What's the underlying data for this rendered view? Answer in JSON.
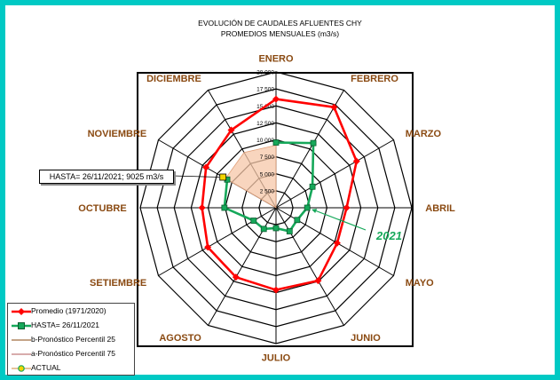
{
  "title_line1": "EVOLUCIÓN DE CAUDALES AFLUENTES CHY",
  "title_line2": "PROMEDIOS MENSUALES (m3/s)",
  "callout": "HASTA= 26/11/2021; 9025 m3/s",
  "year_label": "2021",
  "colors": {
    "promedio": "#ff0000",
    "hasta": "#16a85a",
    "actual": "#f2d400",
    "band": "#f6c7a8"
  },
  "chart_data": {
    "type": "radar",
    "categories": [
      "ENERO",
      "FEBRERO",
      "MARZO",
      "ABRIL",
      "MAYO",
      "JUNIO",
      "JULIO",
      "AGOSTO",
      "SETIEMBRE",
      "OCTUBRE",
      "NOVIEMBRE",
      "DICIEMBRE"
    ],
    "rlim": [
      0,
      20000
    ],
    "ticks": [
      "2 500",
      "5 000",
      "7 500",
      "10 000",
      "12 500",
      "15 000",
      "17 500",
      "20 000"
    ],
    "tick_values": [
      2500,
      5000,
      7500,
      10000,
      12500,
      15000,
      17500,
      20000
    ],
    "series": [
      {
        "name": "Promedio (1971/2020)",
        "marker": "diamond",
        "values": [
          16000,
          17100,
          13700,
          10400,
          10400,
          12400,
          12100,
          11800,
          11600,
          10900,
          11900,
          13200
        ]
      },
      {
        "name": "HASTA= 26/11/2021",
        "marker": "square",
        "values": [
          9600,
          11000,
          6200,
          4600,
          3600,
          4000,
          3000,
          3600,
          3800,
          7600,
          8300,
          null
        ]
      }
    ],
    "legend": [
      "Promedio (1971/2020)",
      "HASTA= 26/11/2021",
      "b-Pronóstico Percentil 25",
      "a-Pronóstico Percentil 75",
      "ACTUAL"
    ],
    "legend_position": "bottom-left",
    "actual": {
      "category": "NOVIEMBRE",
      "value": 9025
    },
    "band_month": "DICIEMBRE"
  }
}
